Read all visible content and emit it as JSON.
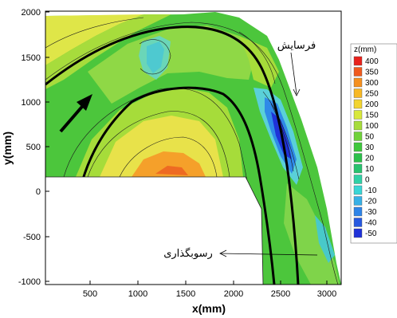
{
  "chart_data": {
    "type": "heatmap",
    "xlabel": "x(mm)",
    "ylabel": "y(mm)",
    "xlim": [
      0,
      3300
    ],
    "ylim": [
      -1100,
      2000
    ],
    "x_ticks": [
      "500",
      "1000",
      "1500",
      "2000",
      "2500",
      "3000"
    ],
    "y_ticks": [
      "2000",
      "1500",
      "1000",
      "500",
      "0",
      "-500",
      "-1000"
    ],
    "colorbar": {
      "title": "z(mm)",
      "levels": [
        "400",
        "350",
        "300",
        "250",
        "200",
        "150",
        "100",
        "50",
        "30",
        "20",
        "10",
        "0",
        "-10",
        "-20",
        "-30",
        "-40",
        "-50"
      ],
      "colors": [
        "#e8221c",
        "#f05a1e",
        "#f5901f",
        "#f7b825",
        "#f2d430",
        "#d8e83a",
        "#a6dc3a",
        "#6fd23a",
        "#3fc83c",
        "#2cc04a",
        "#28c36e",
        "#2fd1a6",
        "#39d6d6",
        "#37b0e6",
        "#2e84e8",
        "#2658e0",
        "#1f32d8"
      ]
    },
    "annotations": {
      "erosion": "فرسایش",
      "deposition": "رسوبگذاری"
    }
  }
}
